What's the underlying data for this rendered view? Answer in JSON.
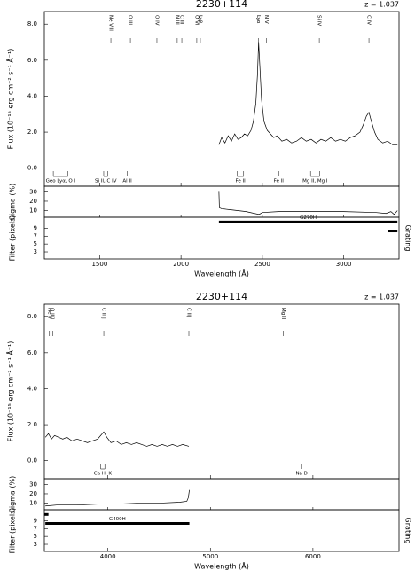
{
  "chart_data": [
    {
      "type": "line",
      "title": "2230+114",
      "annotation": "z = 1.037",
      "x_label": "Wavelength (Å)",
      "y_label": "Flux (10⁻¹⁵ erg cm⁻² s⁻¹ Å⁻¹)",
      "xlim": [
        1160,
        3340
      ],
      "xticks": [
        1500,
        2000,
        2500,
        3000
      ],
      "ylim": [
        -1.0,
        8.7
      ],
      "yticks": [
        {
          "value": 0,
          "label": "0.0"
        },
        {
          "value": 2,
          "label": "2.0"
        },
        {
          "value": 4,
          "label": "4.0"
        },
        {
          "value": 6,
          "label": "6.0"
        },
        {
          "value": 8,
          "label": "8.0"
        }
      ],
      "color": "#000000",
      "x": [
        2233,
        2250,
        2270,
        2290,
        2310,
        2330,
        2350,
        2370,
        2390,
        2410,
        2430,
        2445,
        2460,
        2470,
        2477,
        2485,
        2495,
        2510,
        2530,
        2550,
        2570,
        2590,
        2620,
        2650,
        2680,
        2710,
        2740,
        2770,
        2800,
        2830,
        2860,
        2890,
        2920,
        2950,
        2980,
        3010,
        3040,
        3070,
        3100,
        3120,
        3140,
        3155,
        3170,
        3190,
        3210,
        3240,
        3270,
        3300,
        3330
      ],
      "values": [
        1.3,
        1.7,
        1.4,
        1.8,
        1.5,
        1.9,
        1.6,
        1.7,
        1.9,
        1.8,
        2.1,
        2.6,
        3.6,
        5.2,
        7.0,
        5.6,
        3.8,
        2.6,
        2.1,
        1.9,
        1.7,
        1.8,
        1.5,
        1.6,
        1.4,
        1.5,
        1.7,
        1.5,
        1.6,
        1.4,
        1.6,
        1.5,
        1.7,
        1.5,
        1.6,
        1.5,
        1.7,
        1.8,
        2.0,
        2.4,
        2.9,
        3.1,
        2.6,
        2.0,
        1.6,
        1.4,
        1.5,
        1.3,
        1.3
      ],
      "emission_lines": [
        {
          "x": 1569,
          "label": "Ne VIII"
        },
        {
          "x": 1689,
          "label": "O III"
        },
        {
          "x": 1852,
          "label": "O IV"
        },
        {
          "x": 1977,
          "label": "N III"
        },
        {
          "x": 2005,
          "label": "C III"
        },
        {
          "x": 2097,
          "label": "O VI"
        },
        {
          "x": 2119,
          "label": "Lyβ"
        },
        {
          "x": 2477,
          "label": "Lyα"
        },
        {
          "x": 2526,
          "label": "N V"
        },
        {
          "x": 2850,
          "label": "Si IV"
        },
        {
          "x": 3155,
          "label": "C IV"
        }
      ],
      "absorption_lines": [
        {
          "x": [
            1215,
            1305
          ],
          "label": "Geo Lyα, O I"
        },
        {
          "x": [
            1525,
            1550
          ],
          "label": "Si II, C IV"
        },
        {
          "x": [
            1670
          ],
          "label": "Al II"
        },
        {
          "x": [
            2345,
            2385
          ],
          "label": "Fe II"
        },
        {
          "x": [
            2600
          ],
          "label": "Fe II"
        },
        {
          "x": [
            2796,
            2852
          ],
          "label": "Mg II, Mg I"
        }
      ],
      "sigma": {
        "label": "Sigma (%)",
        "ylim": [
          3,
          36
        ],
        "yticks": [
          10,
          20,
          30
        ],
        "x": [
          2233,
          2236,
          2250,
          2300,
          2400,
          2480,
          2500,
          2600,
          2800,
          3000,
          3200,
          3260,
          3290,
          3310,
          3330
        ],
        "values": [
          30,
          13,
          12,
          11,
          9,
          6,
          8,
          9,
          9,
          9,
          8,
          7,
          9,
          6,
          10
        ]
      },
      "filter": {
        "label": "Filter (pixels)",
        "right_label": "Grating",
        "ylim": [
          1.2,
          11.8
        ],
        "yticks": [
          3,
          5,
          7,
          9
        ],
        "segments": [
          {
            "x": [
              2233,
              3330
            ],
            "y": 10.6,
            "label": "G270H"
          },
          {
            "x": [
              3270,
              3330
            ],
            "y": 8.3
          }
        ]
      }
    },
    {
      "type": "line",
      "title": "2230+114",
      "annotation": "z = 1.037",
      "x_label": "Wavelength (Å)",
      "y_label": "Flux (10⁻¹⁵ erg cm⁻² s⁻¹ Å⁻¹)",
      "xlim": [
        3380,
        6840
      ],
      "xticks": [
        4000,
        5000,
        6000
      ],
      "ylim": [
        -1.0,
        8.7
      ],
      "yticks": [
        {
          "value": 0,
          "label": "0.0"
        },
        {
          "value": 2,
          "label": "2.0"
        },
        {
          "value": 4,
          "label": "4.0"
        },
        {
          "value": 6,
          "label": "6.0"
        },
        {
          "value": 8,
          "label": "8.0"
        }
      ],
      "color": "#000000",
      "x": [
        3390,
        3420,
        3450,
        3480,
        3520,
        3560,
        3600,
        3650,
        3700,
        3750,
        3800,
        3850,
        3900,
        3930,
        3960,
        3990,
        4030,
        4080,
        4130,
        4180,
        4230,
        4280,
        4330,
        4380,
        4430,
        4480,
        4530,
        4580,
        4630,
        4680,
        4730,
        4790
      ],
      "values": [
        1.3,
        1.5,
        1.2,
        1.4,
        1.3,
        1.2,
        1.3,
        1.1,
        1.2,
        1.1,
        1.0,
        1.1,
        1.2,
        1.4,
        1.6,
        1.3,
        1.0,
        1.1,
        0.9,
        1.0,
        0.9,
        1.0,
        0.9,
        0.8,
        0.9,
        0.8,
        0.9,
        0.8,
        0.9,
        0.8,
        0.9,
        0.8
      ],
      "emission_lines": [
        {
          "x": 3430,
          "label": "He II"
        },
        {
          "x": 3460,
          "label": "O III]"
        },
        {
          "x": 3960,
          "label": "C III]"
        },
        {
          "x": 4790,
          "label": "C II]"
        },
        {
          "x": 5710,
          "label": "Mg II"
        }
      ],
      "absorption_lines": [
        {
          "x": [
            3930,
            3970
          ],
          "label": "Ca H, K"
        },
        {
          "x": [
            5890
          ],
          "label": "Na D"
        }
      ],
      "sigma": {
        "label": "Sigma (%)",
        "ylim": [
          3,
          36
        ],
        "yticks": [
          10,
          20,
          30
        ],
        "x": [
          3390,
          3500,
          3700,
          3900,
          4100,
          4300,
          4500,
          4700,
          4770,
          4785,
          4795
        ],
        "values": [
          7,
          8,
          8,
          9,
          9,
          10,
          10,
          11,
          12,
          16,
          24
        ]
      },
      "filter": {
        "label": "Filter (pixels)",
        "right_label": "Grating",
        "ylim": [
          1.2,
          11.8
        ],
        "yticks": [
          3,
          5,
          7,
          9
        ],
        "segments": [
          {
            "x": [
              3380,
              3420
            ],
            "y": 10.6
          },
          {
            "x": [
              3390,
              4795
            ],
            "y": 8.3,
            "label": "G400H"
          }
        ]
      }
    }
  ]
}
